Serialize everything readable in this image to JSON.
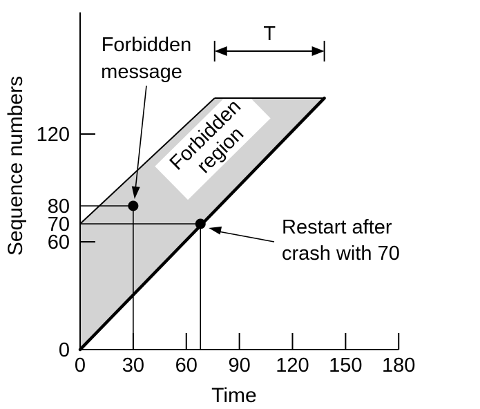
{
  "diagram": {
    "type": "sequence-number-time-diagram",
    "x_axis": {
      "label": "Time",
      "range": [
        0,
        180
      ],
      "ticks": [
        0,
        30,
        60,
        90,
        120,
        150,
        180
      ]
    },
    "y_axis": {
      "label": "Sequence numbers",
      "range": [
        0,
        140
      ],
      "tick_labels": [
        0,
        60,
        70,
        80,
        120
      ]
    },
    "T_label": "T",
    "T_span": [
      76,
      138
    ],
    "band_top_y": 140,
    "lower_boundary": {
      "from": [
        0,
        0
      ],
      "to": [
        138,
        140
      ]
    },
    "upper_boundary": {
      "from": [
        0,
        70
      ],
      "to": [
        76,
        140
      ]
    },
    "forbidden_region_label": [
      "Forbidden",
      "region"
    ],
    "forbidden_message": {
      "label": [
        "Forbidden",
        "message"
      ],
      "point": [
        30,
        80
      ]
    },
    "restart": {
      "label": [
        "Restart after",
        "crash with 70"
      ],
      "point": [
        68,
        70
      ]
    },
    "colors": {
      "forbidden_fill": "#d3d3d3",
      "line": "#000000",
      "label_box": "#ffffff"
    }
  }
}
